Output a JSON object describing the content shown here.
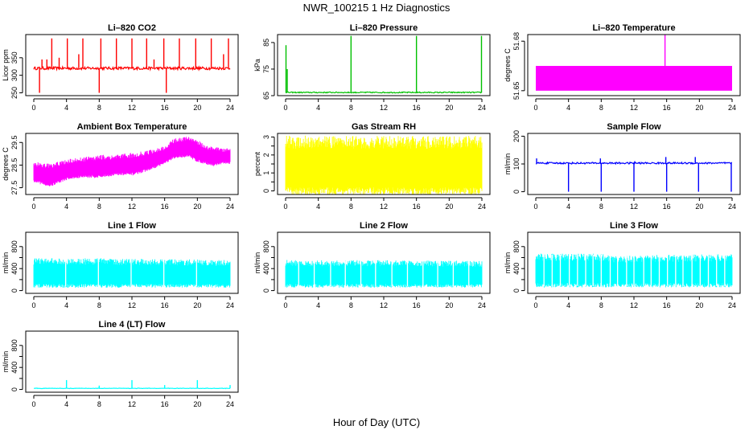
{
  "figure": {
    "title": "NWR_100215  1 Hz Diagnostics",
    "xlabel": "Hour of Day (UTC)"
  },
  "chart_data": [
    {
      "type": "line",
      "title": "Li–820 CO2",
      "ylabel": "Licor ppm",
      "color": "#ff0000",
      "xlim": [
        0,
        24
      ],
      "ylim": [
        242,
        416
      ],
      "xticks": [
        0,
        4,
        8,
        12,
        16,
        20,
        24
      ],
      "yticks": [
        250,
        300,
        350
      ],
      "baseline": 320,
      "noise": 4,
      "spikes": [
        {
          "x": 0.7,
          "y": 250
        },
        {
          "x": 1.0,
          "y": 345
        },
        {
          "x": 1.6,
          "y": 345
        },
        {
          "x": 2.2,
          "y": 405
        },
        {
          "x": 3.1,
          "y": 350
        },
        {
          "x": 4.1,
          "y": 405
        },
        {
          "x": 5.5,
          "y": 360
        },
        {
          "x": 6.0,
          "y": 405
        },
        {
          "x": 8.0,
          "y": 250
        },
        {
          "x": 8.2,
          "y": 405
        },
        {
          "x": 10.1,
          "y": 405
        },
        {
          "x": 12.0,
          "y": 405
        },
        {
          "x": 13.8,
          "y": 405
        },
        {
          "x": 14.7,
          "y": 345
        },
        {
          "x": 15.9,
          "y": 405
        },
        {
          "x": 16.2,
          "y": 250
        },
        {
          "x": 17.8,
          "y": 405
        },
        {
          "x": 19.8,
          "y": 405
        },
        {
          "x": 21.7,
          "y": 405
        },
        {
          "x": 23.2,
          "y": 360
        },
        {
          "x": 23.8,
          "y": 405
        }
      ]
    },
    {
      "type": "line",
      "title": "Li–820 Pressure",
      "ylabel": "kPa",
      "color": "#00c000",
      "xlim": [
        0,
        24
      ],
      "ylim": [
        65,
        88
      ],
      "xticks": [
        0,
        4,
        8,
        12,
        16,
        20,
        24
      ],
      "yticks": [
        65,
        75,
        85
      ],
      "baseline": 66.2,
      "noise": 0.2,
      "spikes": [
        {
          "x": 0.05,
          "y": 84
        },
        {
          "x": 0.2,
          "y": 75
        },
        {
          "x": 8.0,
          "y": 87.5
        },
        {
          "x": 16.0,
          "y": 87.5
        },
        {
          "x": 23.95,
          "y": 87.5
        }
      ]
    },
    {
      "type": "area",
      "title": "Li–820 Temperature",
      "ylabel": "degrees C",
      "color": "#ff00ff",
      "xlim": [
        0,
        24
      ],
      "ylim": [
        51.647,
        51.684
      ],
      "xticks": [
        0,
        4,
        8,
        12,
        16,
        20,
        24
      ],
      "yticks": [
        51.65,
        51.68
      ],
      "band": [
        51.65,
        51.665
      ],
      "spikes": [
        {
          "x": 15.8,
          "y": 51.684
        }
      ]
    },
    {
      "type": "line",
      "title": "Ambient Box Temperature",
      "ylabel": "degrees C",
      "color": "#ff00ff",
      "xlim": [
        0,
        24
      ],
      "ylim": [
        27.2,
        29.9
      ],
      "xticks": [
        0,
        4,
        8,
        12,
        16,
        20,
        24
      ],
      "yticks": [
        27.5,
        28.5,
        29.5
      ],
      "band_x": [
        0,
        2,
        4,
        6,
        8,
        10,
        12,
        14,
        16,
        17,
        18,
        19,
        20,
        21,
        22,
        23,
        24
      ],
      "band_lo": [
        27.8,
        27.6,
        27.9,
        28.0,
        28.0,
        28.1,
        28.1,
        28.3,
        28.6,
        28.8,
        28.9,
        28.9,
        28.7,
        28.6,
        28.5,
        28.6,
        28.6
      ],
      "band_hi": [
        28.6,
        28.5,
        28.7,
        28.8,
        28.9,
        28.9,
        29.0,
        29.1,
        29.3,
        29.6,
        29.7,
        29.7,
        29.6,
        29.3,
        29.3,
        29.2,
        29.2
      ]
    },
    {
      "type": "line",
      "title": "Gas Stream RH",
      "ylabel": "percent",
      "color": "#ffff00",
      "xlim": [
        0,
        24
      ],
      "ylim": [
        -0.2,
        3.2
      ],
      "xticks": [
        0,
        4,
        8,
        12,
        16,
        20,
        24
      ],
      "yticks": [
        0.0,
        1.0,
        2.0,
        3.0
      ],
      "yticks_minor": [
        0.5,
        1.5,
        2.5
      ],
      "band_x": [
        0,
        24
      ],
      "band_lo": [
        0.0,
        0.0
      ],
      "band_hi": [
        2.9,
        2.9
      ]
    },
    {
      "type": "line",
      "title": "Sample Flow",
      "ylabel": "ml/min",
      "color": "#0000ff",
      "xlim": [
        0,
        24
      ],
      "ylim": [
        -10,
        210
      ],
      "xticks": [
        0,
        4,
        8,
        12,
        16,
        20,
        24
      ],
      "yticks": [
        0,
        100,
        200
      ],
      "baseline": 103,
      "noise": 3,
      "spikes": [
        {
          "x": 0.1,
          "y": 120
        },
        {
          "x": 4.0,
          "y": 0
        },
        {
          "x": 7.9,
          "y": 120
        },
        {
          "x": 8.0,
          "y": 0
        },
        {
          "x": 12.0,
          "y": 0
        },
        {
          "x": 12.1,
          "y": 110
        },
        {
          "x": 15.9,
          "y": 125
        },
        {
          "x": 16.0,
          "y": 0
        },
        {
          "x": 19.5,
          "y": 125
        },
        {
          "x": 19.9,
          "y": 0
        },
        {
          "x": 23.9,
          "y": 0
        }
      ]
    },
    {
      "type": "line",
      "title": "Line 1 Flow",
      "ylabel": "ml/min",
      "color": "#00ffff",
      "xlim": [
        0,
        24
      ],
      "ylim": [
        -50,
        1060
      ],
      "xticks": [
        0,
        4,
        8,
        12,
        16,
        20,
        24
      ],
      "yticks": [
        0,
        400,
        800
      ],
      "yticks_minor": [
        200,
        600
      ],
      "band_x": [
        0,
        4,
        8,
        12,
        16,
        20,
        24
      ],
      "band_lo": [
        90,
        90,
        90,
        90,
        90,
        90,
        90
      ],
      "band_hi": [
        565,
        560,
        560,
        550,
        545,
        540,
        530
      ],
      "gaps": [
        3.9,
        7.9,
        11.9,
        15.9,
        19.9
      ]
    },
    {
      "type": "line",
      "title": "Line 2 Flow",
      "ylabel": "ml/min",
      "color": "#00ffff",
      "xlim": [
        0,
        24
      ],
      "ylim": [
        -50,
        1060
      ],
      "xticks": [
        0,
        4,
        8,
        12,
        16,
        20,
        24
      ],
      "yticks": [
        0,
        400,
        800
      ],
      "yticks_minor": [
        200,
        600
      ],
      "band_x": [
        0,
        4,
        8,
        12,
        16,
        20,
        24
      ],
      "band_lo": [
        90,
        90,
        90,
        90,
        90,
        90,
        90
      ],
      "band_hi": [
        530,
        525,
        530,
        525,
        520,
        520,
        510
      ],
      "gaps": [
        1.6,
        3.5,
        5.5,
        7.3,
        9.2,
        11.0,
        13.0,
        14.9,
        16.8,
        18.6,
        20.5,
        22.4
      ]
    },
    {
      "type": "line",
      "title": "Line 3 Flow",
      "ylabel": "ml/min",
      "color": "#00ffff",
      "xlim": [
        0,
        24
      ],
      "ylim": [
        -50,
        1060
      ],
      "xticks": [
        0,
        4,
        8,
        12,
        16,
        20,
        24
      ],
      "yticks": [
        0,
        400,
        800
      ],
      "yticks_minor": [
        200,
        600
      ],
      "band_x": [
        0,
        4,
        8,
        10,
        12,
        16,
        20,
        24
      ],
      "band_lo": [
        100,
        100,
        100,
        100,
        100,
        100,
        100,
        100
      ],
      "band_hi": [
        640,
        640,
        640,
        600,
        610,
        620,
        630,
        630
      ],
      "gaps": [
        1.0,
        2.0,
        3.0,
        4.1,
        5.1,
        6.1,
        7.0,
        8.0,
        9.1,
        10.0,
        11.1,
        12.0,
        13.2,
        14.1,
        15.1,
        16.1,
        17.1,
        18.0,
        19.1,
        20.1,
        21.1,
        22.1,
        23.1
      ]
    },
    {
      "type": "line",
      "title": "Line 4 (LT) Flow",
      "ylabel": "ml/min",
      "color": "#00ffff",
      "xlim": [
        0,
        24
      ],
      "ylim": [
        -50,
        1060
      ],
      "xticks": [
        0,
        4,
        8,
        12,
        16,
        20,
        24
      ],
      "yticks": [
        0,
        400,
        800
      ],
      "yticks_minor": [
        200,
        600
      ],
      "baseline": 20,
      "noise": 4,
      "spikes": [
        {
          "x": 4.0,
          "y": 170
        },
        {
          "x": 8.0,
          "y": 70
        },
        {
          "x": 12.0,
          "y": 170
        },
        {
          "x": 16.0,
          "y": 80
        },
        {
          "x": 20.0,
          "y": 170
        },
        {
          "x": 24.0,
          "y": 80
        }
      ]
    }
  ]
}
